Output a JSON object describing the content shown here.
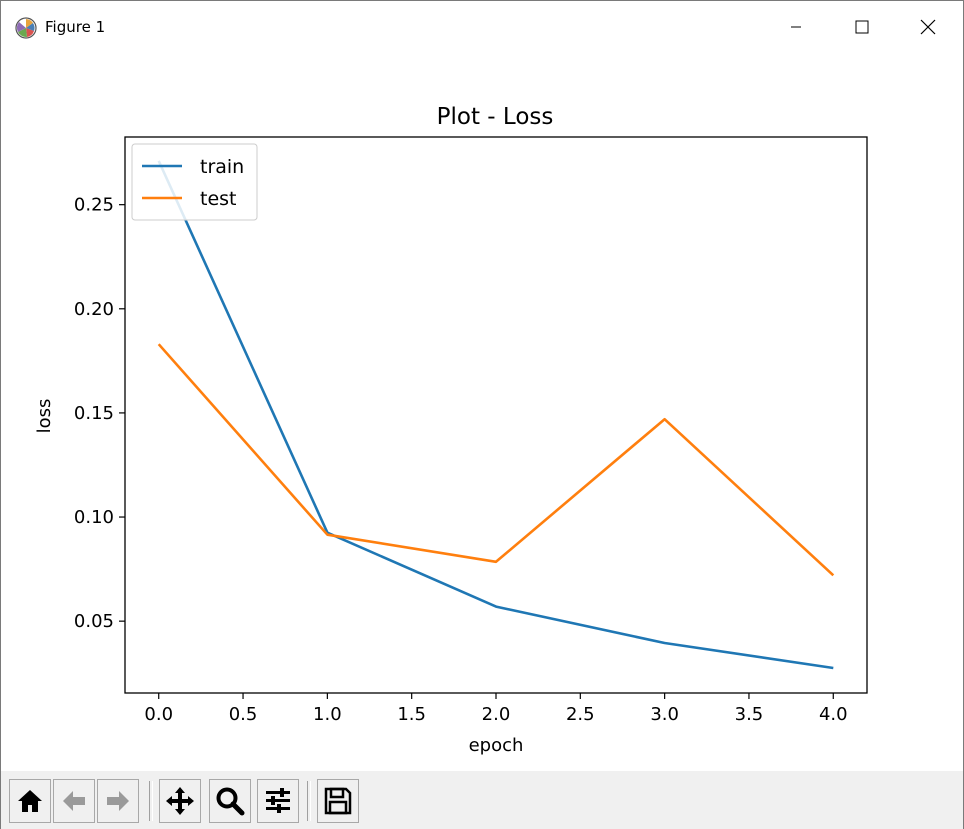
{
  "window": {
    "title": "Figure 1",
    "controls": {
      "minimize": "minimize",
      "maximize": "maximize",
      "close": "close"
    }
  },
  "toolbar": {
    "buttons": [
      {
        "name": "home",
        "icon": "home-icon"
      },
      {
        "name": "back",
        "icon": "arrow-left-icon"
      },
      {
        "name": "forward",
        "icon": "arrow-right-icon"
      },
      {
        "name": "pan",
        "icon": "move-icon"
      },
      {
        "name": "zoom",
        "icon": "magnifier-icon"
      },
      {
        "name": "configure-subplots",
        "icon": "sliders-icon"
      },
      {
        "name": "save",
        "icon": "floppy-disk-icon"
      }
    ]
  },
  "chart_data": {
    "type": "line",
    "title": "Plot - Loss",
    "xlabel": "epoch",
    "ylabel": "loss",
    "x": [
      0,
      1,
      2,
      3,
      4
    ],
    "xlim": [
      -0.2,
      4.2
    ],
    "ylim": [
      0.0155,
      0.2825
    ],
    "xticks": [
      0.0,
      0.5,
      1.0,
      1.5,
      2.0,
      2.5,
      3.0,
      3.5,
      4.0
    ],
    "xtick_labels": [
      "0.0",
      "0.5",
      "1.0",
      "1.5",
      "2.0",
      "2.5",
      "3.0",
      "3.5",
      "4.0"
    ],
    "yticks": [
      0.05,
      0.1,
      0.15,
      0.2,
      0.25
    ],
    "ytick_labels": [
      "0.05",
      "0.10",
      "0.15",
      "0.20",
      "0.25"
    ],
    "grid": false,
    "legend_position": "top-left",
    "series": [
      {
        "name": "train",
        "color": "#1f77b4",
        "values": [
          0.271,
          0.0925,
          0.057,
          0.0395,
          0.0275
        ]
      },
      {
        "name": "test",
        "color": "#ff7f0e",
        "values": [
          0.183,
          0.0915,
          0.0785,
          0.147,
          0.072
        ]
      }
    ]
  }
}
